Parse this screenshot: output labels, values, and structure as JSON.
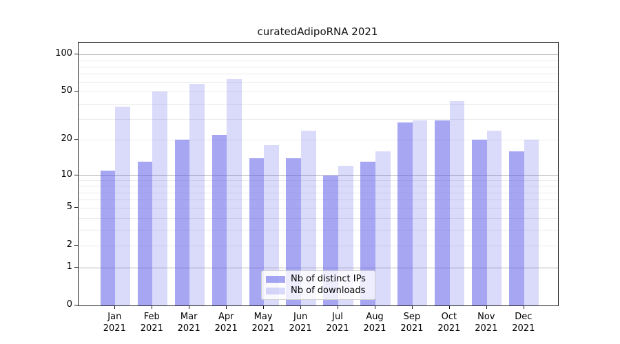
{
  "title": "curatedAdipoRNA 2021",
  "chart_data": {
    "type": "bar",
    "title": "curatedAdipoRNA 2021",
    "xlabel": "",
    "ylabel": "",
    "categories": [
      "Jan 2021",
      "Feb 2021",
      "Mar 2021",
      "Apr 2021",
      "May 2021",
      "Jun 2021",
      "Jul 2021",
      "Aug 2021",
      "Sep 2021",
      "Oct 2021",
      "Nov 2021",
      "Dec 2021"
    ],
    "series": [
      {
        "name": "Nb of distinct IPs",
        "color": "#aaaaf2",
        "values": [
          11,
          13,
          20,
          22,
          14,
          14,
          10,
          13,
          28,
          29,
          20,
          16
        ]
      },
      {
        "name": "Nb of downloads",
        "color": "#dadaf7",
        "values": [
          38,
          50,
          58,
          63,
          18,
          24,
          12,
          16,
          29,
          42,
          24,
          20
        ]
      }
    ],
    "yscale": "log-like (y proportional to ln(1+value))",
    "ylim": [
      0,
      125
    ],
    "yticks": [
      0,
      1,
      2,
      5,
      10,
      20,
      50,
      100
    ],
    "grid": true,
    "gridlines": {
      "major": [
        1,
        10,
        100
      ],
      "minor": [
        2,
        3,
        4,
        6,
        7,
        8,
        9,
        20,
        30,
        40,
        60,
        70,
        80,
        90,
        2,
        5,
        50
      ]
    },
    "legend_position": "lower center",
    "accent_color": "#5555e8"
  }
}
